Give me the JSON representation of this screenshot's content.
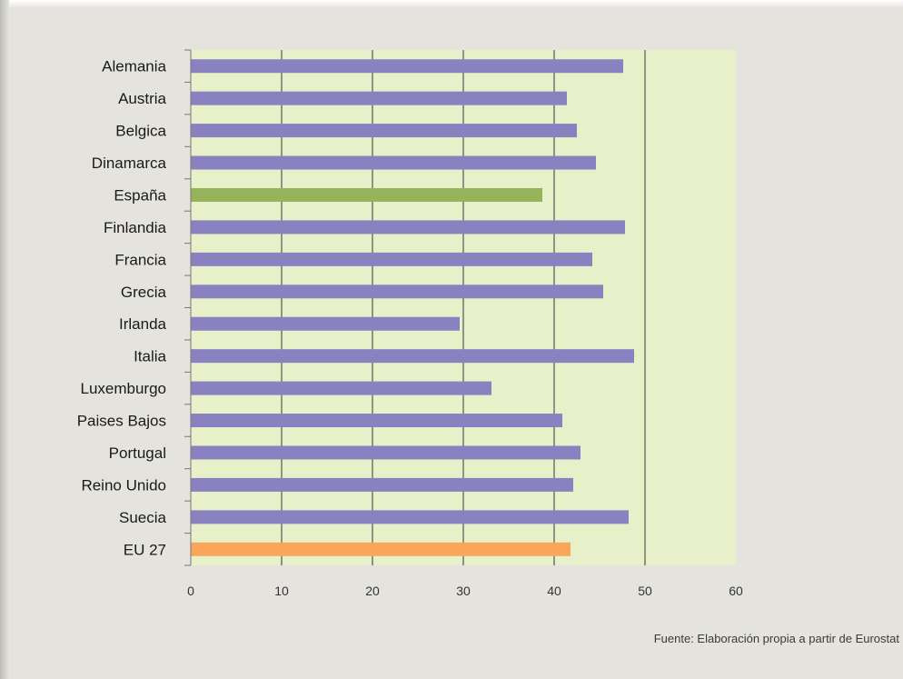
{
  "source_note": "Fuente: Elaboración propia a partir de Eurostat",
  "colors": {
    "plot_background": "#e7f0c8",
    "grid": "#555555",
    "default_bar": "#8a82c0",
    "spain_bar": "#97b35a",
    "eu_bar": "#f9a65a",
    "text": "#1a1a1a"
  },
  "chart_data": {
    "type": "bar",
    "orientation": "horizontal",
    "title": "",
    "xlabel": "",
    "ylabel": "",
    "xlim": [
      0,
      60
    ],
    "xticks": [
      0,
      10,
      20,
      30,
      40,
      50,
      60
    ],
    "grid": true,
    "legend": "none",
    "categories": [
      "Alemania",
      "Austria",
      "Belgica",
      "Dinamarca",
      "España",
      "Finlandia",
      "Francia",
      "Grecia",
      "Irlanda",
      "Italia",
      "Luxemburgo",
      "Paises Bajos",
      "Portugal",
      "Reino Unido",
      "Suecia",
      "EU 27"
    ],
    "values": [
      47.6,
      41.4,
      42.5,
      44.6,
      38.7,
      47.8,
      44.2,
      45.4,
      29.6,
      48.8,
      33.1,
      40.9,
      42.9,
      42.1,
      48.2,
      41.8
    ],
    "bar_colors": [
      "#8a82c0",
      "#8a82c0",
      "#8a82c0",
      "#8a82c0",
      "#97b35a",
      "#8a82c0",
      "#8a82c0",
      "#8a82c0",
      "#8a82c0",
      "#8a82c0",
      "#8a82c0",
      "#8a82c0",
      "#8a82c0",
      "#8a82c0",
      "#8a82c0",
      "#f9a65a"
    ]
  }
}
